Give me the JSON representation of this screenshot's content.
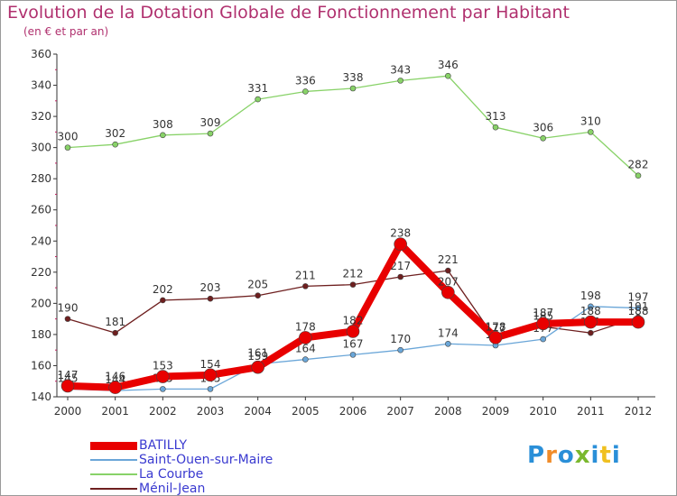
{
  "header": {
    "title": "Evolution de la Dotation Globale de Fonctionnement par Habitant",
    "subtitle": "(en € et par an)"
  },
  "logo": {
    "text": "Proxiti",
    "letters": [
      "P",
      "r",
      "o",
      "x",
      "i",
      "t",
      "i"
    ],
    "colors": [
      "#2a8fd8",
      "#f08c2a",
      "#2a8fd8",
      "#7ab82e",
      "#2a8fd8",
      "#f0c020",
      "#2a8fd8"
    ]
  },
  "chart_data": {
    "type": "line",
    "title": "Evolution de la Dotation Globale de Fonctionnement par Habitant",
    "subtitle": "(en € et par an)",
    "xlabel": "",
    "ylabel": "",
    "ylim": [
      140,
      360
    ],
    "yticks": [
      140,
      160,
      180,
      200,
      220,
      240,
      260,
      280,
      300,
      320,
      340,
      360
    ],
    "grid": false,
    "legend_position": "bottom-left",
    "categories": [
      "2000",
      "2001",
      "2002",
      "2003",
      "2004",
      "2005",
      "2006",
      "2007",
      "2008",
      "2009",
      "2010",
      "2011",
      "2012"
    ],
    "series": [
      {
        "name": "Ménil-Jean",
        "color": "#6e1f1f",
        "values": [
          190,
          181,
          202,
          203,
          205,
          211,
          212,
          217,
          221,
          177,
          185,
          181,
          191
        ],
        "labels": [
          "190",
          "181",
          "202",
          "203",
          "205",
          "211",
          "212",
          "217",
          "221",
          "177",
          "185",
          "181",
          "191"
        ]
      },
      {
        "name": "La Courbe",
        "color": "#88d268",
        "values": [
          300,
          302,
          308,
          309,
          331,
          336,
          338,
          343,
          346,
          313,
          306,
          310,
          282
        ],
        "labels": [
          "300",
          "302",
          "308",
          "309",
          "331",
          "336",
          "338",
          "343",
          "346",
          "313",
          "306",
          "310",
          "282"
        ]
      },
      {
        "name": "Saint-Ouen-sur-Maire",
        "color": "#6aa6d8",
        "values": [
          145,
          144,
          145,
          145,
          161,
          164,
          167,
          170,
          174,
          173,
          177,
          198,
          197
        ],
        "labels": [
          "145",
          "144",
          "145",
          "145",
          "161",
          "164",
          "167",
          "170",
          "174",
          "173",
          "177",
          "198",
          "197"
        ]
      },
      {
        "name": "BATILLY",
        "color": "#e80000",
        "values": [
          147,
          146,
          153,
          154,
          159,
          178,
          182,
          238,
          207,
          178,
          187,
          188,
          188
        ],
        "labels": [
          "147",
          "146",
          "153",
          "154",
          "159",
          "178",
          "182",
          "238",
          "207",
          "178",
          "187",
          "188",
          "188"
        ]
      }
    ]
  },
  "legend": {
    "items": [
      {
        "label": "BATILLY",
        "color": "#e80000",
        "thickness": 9
      },
      {
        "label": "Saint-Ouen-sur-Maire",
        "color": "#6aa6d8",
        "thickness": 2
      },
      {
        "label": "La Courbe",
        "color": "#88d268",
        "thickness": 2
      },
      {
        "label": "Ménil-Jean",
        "color": "#6e1f1f",
        "thickness": 2
      }
    ]
  }
}
